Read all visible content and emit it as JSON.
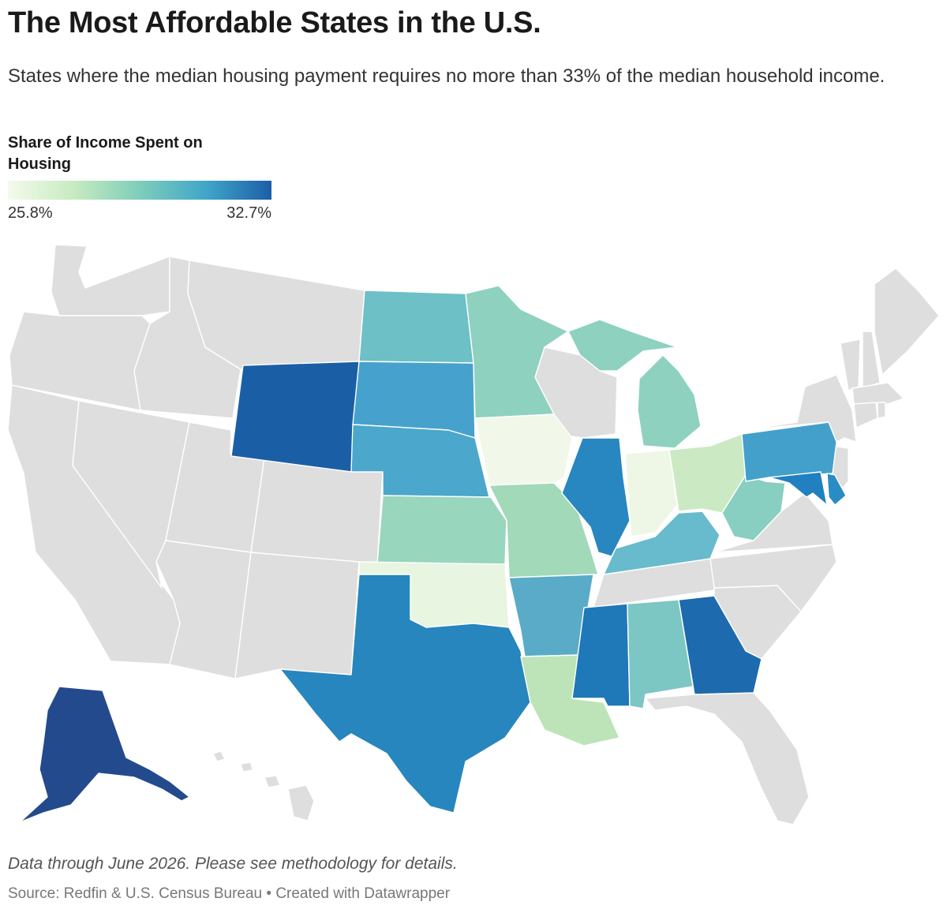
{
  "header": {
    "title": "The Most Affordable States in the U.S.",
    "subtitle": "States where the median housing payment requires no more than 33% of the median household income."
  },
  "legend": {
    "title": "Share of Income Spent on Housing",
    "min_label": "25.8%",
    "max_label": "32.7%",
    "min_value": 25.8,
    "max_value": 32.7,
    "colors": [
      "#f4faec",
      "#c7ebc0",
      "#7fcdbb",
      "#41a6c9",
      "#1c5ea8"
    ]
  },
  "no_data_color": "#dedede",
  "map": {
    "highlighted_states": [
      {
        "state": "Wyoming",
        "color": "#1a5fa6"
      },
      {
        "state": "North Dakota",
        "color": "#6cc0c6"
      },
      {
        "state": "South Dakota",
        "color": "#46a2cc"
      },
      {
        "state": "Nebraska",
        "color": "#4ba7cb"
      },
      {
        "state": "Kansas",
        "color": "#98d6bd"
      },
      {
        "state": "Oklahoma",
        "color": "#e8f5e0"
      },
      {
        "state": "Texas",
        "color": "#2686bd"
      },
      {
        "state": "Minnesota",
        "color": "#8ed1bf"
      },
      {
        "state": "Iowa",
        "color": "#f1f8e9"
      },
      {
        "state": "Missouri",
        "color": "#a2d9b9"
      },
      {
        "state": "Arkansas",
        "color": "#5aabc8"
      },
      {
        "state": "Louisiana",
        "color": "#bde4b8"
      },
      {
        "state": "Illinois",
        "color": "#2886c0"
      },
      {
        "state": "Mississippi",
        "color": "#1f78b8"
      },
      {
        "state": "Alabama",
        "color": "#7cc6c4"
      },
      {
        "state": "Georgia",
        "color": "#1d6aae"
      },
      {
        "state": "Kentucky",
        "color": "#67bbcc"
      },
      {
        "state": "Indiana",
        "color": "#eef7e6"
      },
      {
        "state": "Ohio",
        "color": "#cbeac3"
      },
      {
        "state": "Michigan",
        "color": "#8ed1bf"
      },
      {
        "state": "West Virginia",
        "color": "#88cec1"
      },
      {
        "state": "Pennsylvania",
        "color": "#43a0cb"
      },
      {
        "state": "Maryland",
        "color": "#2180bf"
      },
      {
        "state": "Delaware",
        "color": "#2a8cc4"
      },
      {
        "state": "Alaska",
        "color": "#234a8d"
      }
    ]
  },
  "footer": {
    "note": "Data through June 2026. Please see methodology for details.",
    "source": "Source: Redfin & U.S. Census Bureau • Created with Datawrapper"
  }
}
